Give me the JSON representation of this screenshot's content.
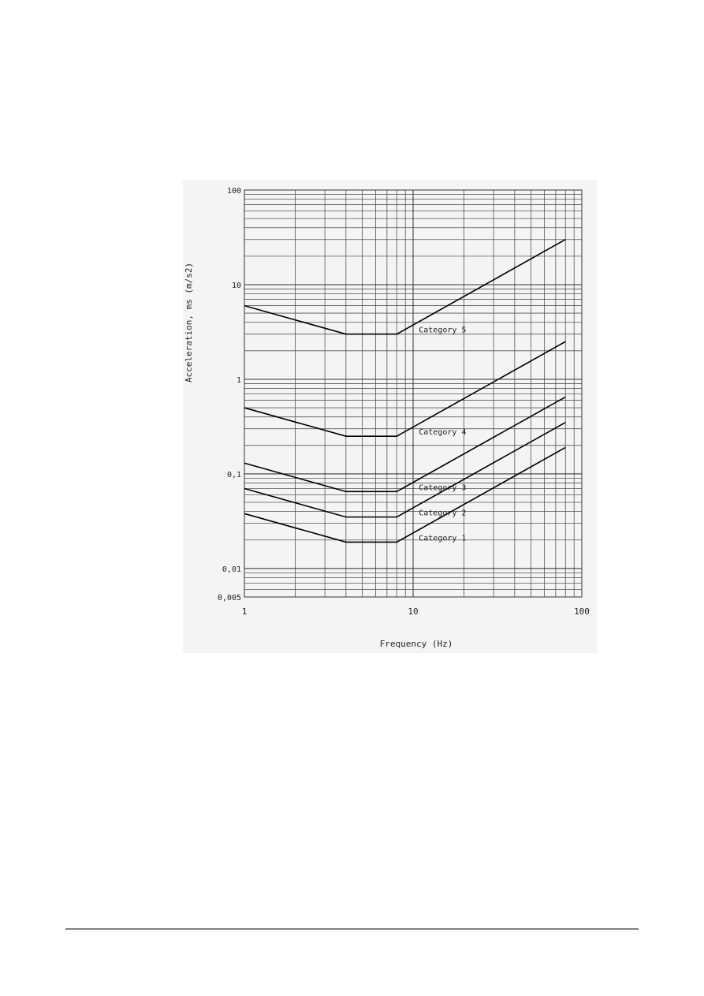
{
  "chart_data": {
    "type": "line",
    "x_label": "Frequency (Hz)",
    "y_label": "Acceleration, ms (m/s2)",
    "x": [
      1,
      4,
      8,
      80
    ],
    "series": [
      {
        "name": "Category 5",
        "color": "#000000",
        "values": [
          6,
          3,
          3,
          30
        ]
      },
      {
        "name": "Category 4",
        "color": "#000000",
        "values": [
          0.5,
          0.25,
          0.25,
          2.5
        ]
      },
      {
        "name": "Category 3",
        "color": "#000000",
        "values": [
          0.13,
          0.065,
          0.065,
          0.65
        ]
      },
      {
        "name": "Category 2",
        "color": "#000000",
        "values": [
          0.07,
          0.035,
          0.035,
          0.35
        ]
      },
      {
        "name": "Category 1",
        "color": "#000000",
        "values": [
          0.038,
          0.019,
          0.019,
          0.19
        ]
      }
    ],
    "xlim": [
      1,
      100
    ],
    "xticks": [
      1,
      10,
      100
    ],
    "ylim": [
      0.005,
      100
    ],
    "yticks": [
      {
        "value": 0.005,
        "label": "0,005"
      },
      {
        "value": 0.01,
        "label": "0,01"
      },
      {
        "value": 0.1,
        "label": "0,1"
      },
      1,
      10,
      100
    ],
    "x_log": true,
    "y_log": true,
    "grid": true,
    "minor_grid": true
  }
}
